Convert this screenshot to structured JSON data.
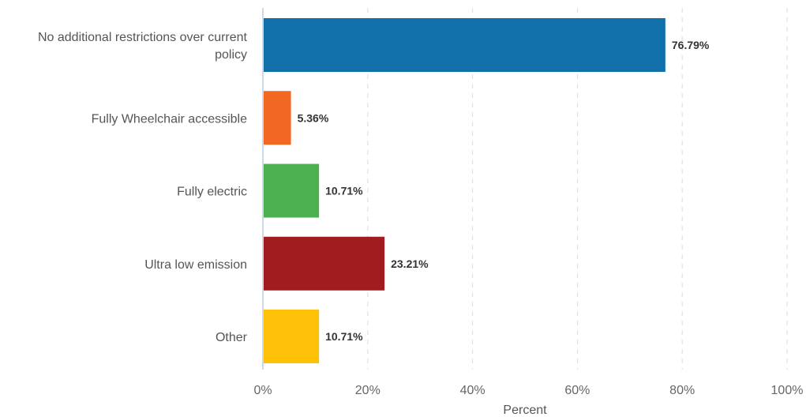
{
  "chart_data": {
    "type": "bar",
    "orientation": "horizontal",
    "categories": [
      [
        "No additional restrictions over current",
        "policy"
      ],
      [
        "Fully Wheelchair accessible"
      ],
      [
        "Fully electric"
      ],
      [
        "Ultra low emission"
      ],
      [
        "Other"
      ]
    ],
    "values": [
      76.79,
      5.36,
      10.71,
      23.21,
      10.71
    ],
    "value_labels": [
      "76.79%",
      "5.36%",
      "10.71%",
      "23.21%",
      "10.71%"
    ],
    "colors": [
      "#1170aa",
      "#f26722",
      "#4caf50",
      "#a11c1f",
      "#ffc107"
    ],
    "xlim": [
      0,
      100
    ],
    "xticks": [
      0,
      20,
      40,
      60,
      80,
      100
    ],
    "xtick_labels": [
      "0%",
      "20%",
      "40%",
      "60%",
      "80%",
      "100%"
    ],
    "xlabel": "Percent",
    "ylabel": "",
    "title": "",
    "grid": true,
    "legend": "none"
  }
}
